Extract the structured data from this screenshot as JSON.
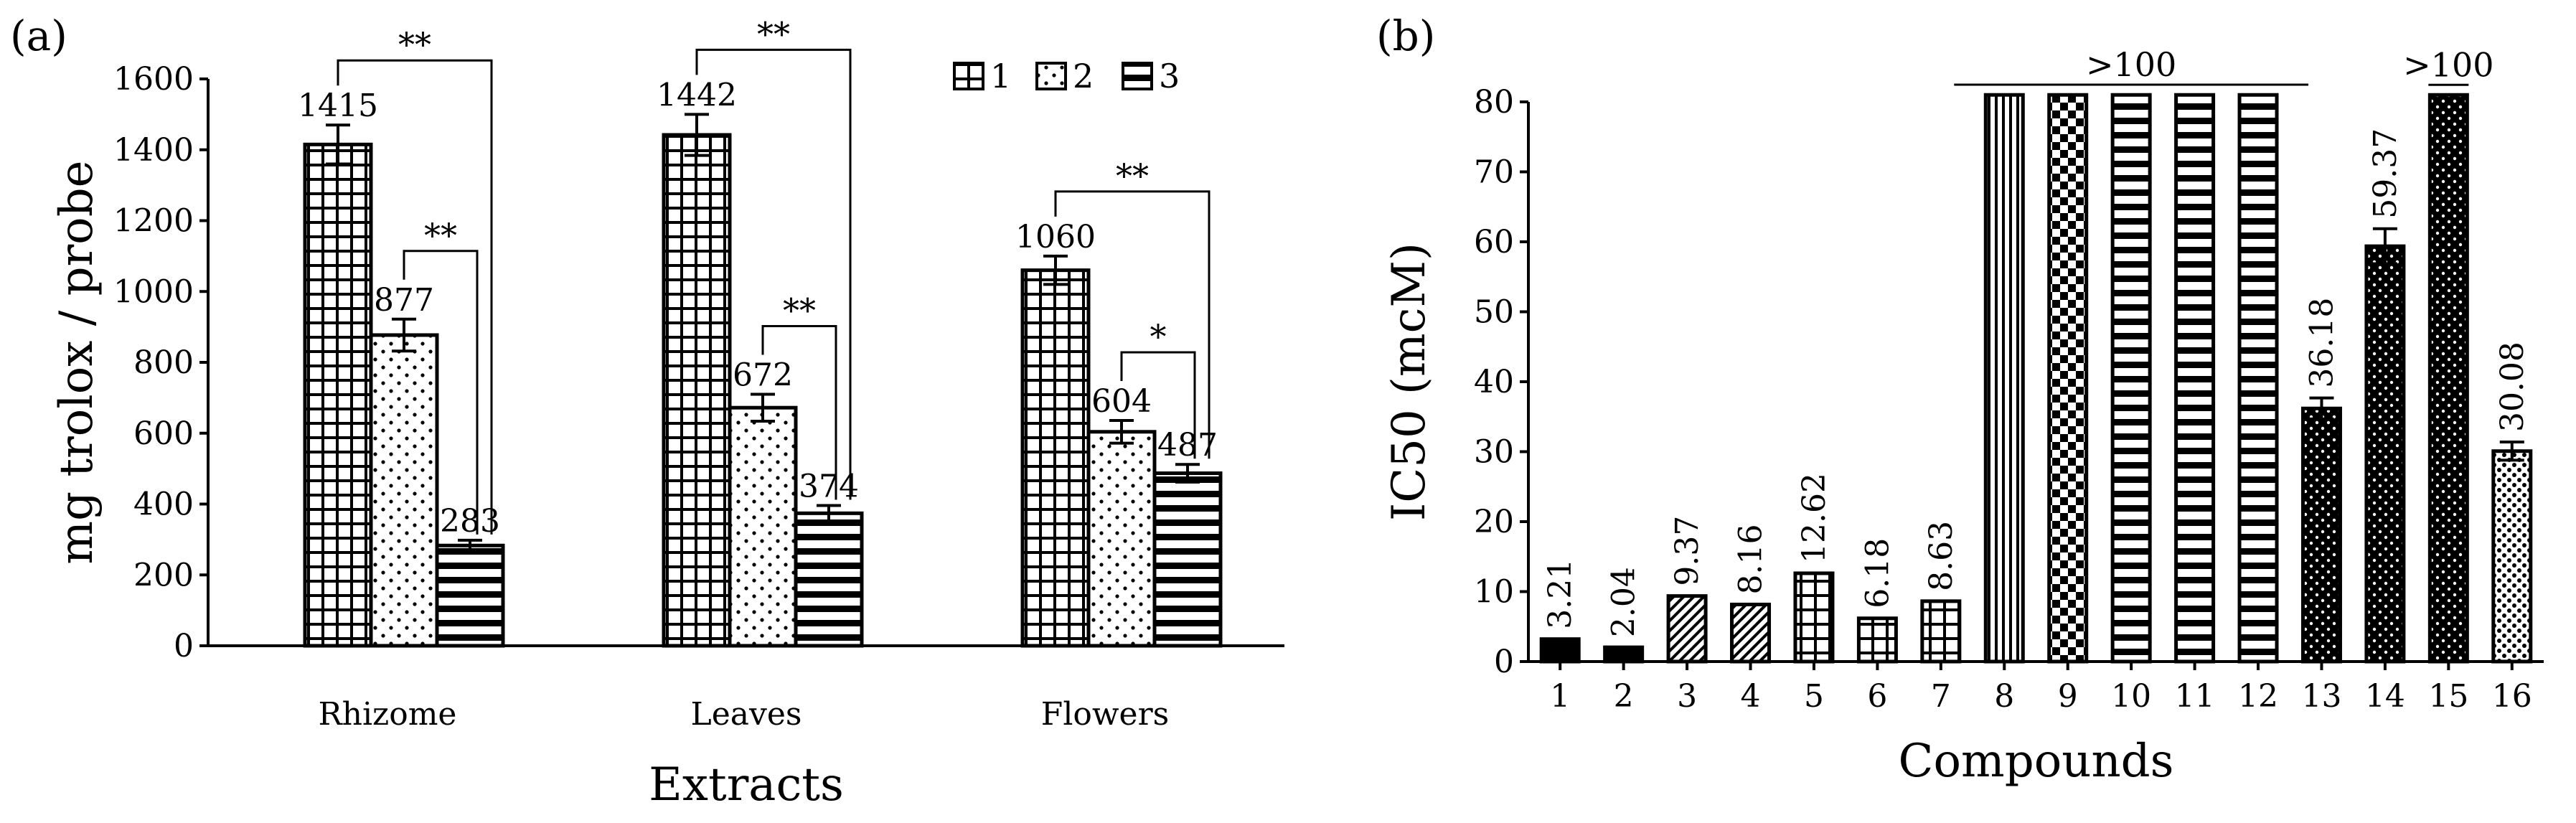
{
  "colors": {
    "ink": "#000000",
    "background": "#ffffff"
  },
  "chart_data": [
    {
      "type": "bar",
      "panel_label": "(a)",
      "title": "",
      "xlabel": "Extracts",
      "ylabel": "mg trolox / probe",
      "ylim": [
        0,
        1600
      ],
      "yticks": [
        "0",
        "200",
        "400",
        "600",
        "800",
        "1000",
        "1200",
        "1400",
        "1600"
      ],
      "categories": [
        "Rhizome",
        "Leaves",
        "Flowers"
      ],
      "series": [
        {
          "name": "1",
          "pattern": "grid",
          "values": [
            1415,
            1442,
            1060
          ],
          "errors": [
            55,
            58,
            40
          ],
          "labels": [
            "1415",
            "1442",
            "1060"
          ]
        },
        {
          "name": "2",
          "pattern": "dots",
          "values": [
            877,
            672,
            604
          ],
          "errors": [
            45,
            38,
            32
          ],
          "labels": [
            "877",
            "672",
            "604"
          ]
        },
        {
          "name": "3",
          "pattern": "hlines",
          "values": [
            283,
            374,
            487
          ],
          "errors": [
            15,
            22,
            25
          ],
          "labels": [
            "283",
            "374",
            "487"
          ]
        }
      ],
      "significance": [
        {
          "category": "Rhizome",
          "from": "1",
          "to": "3",
          "label": "**"
        },
        {
          "category": "Rhizome",
          "from": "2",
          "to": "3",
          "label": "**"
        },
        {
          "category": "Leaves",
          "from": "1",
          "to": "3",
          "label": "**"
        },
        {
          "category": "Leaves",
          "from": "2",
          "to": "3",
          "label": "**"
        },
        {
          "category": "Flowers",
          "from": "1",
          "to": "3",
          "label": "**"
        },
        {
          "category": "Flowers",
          "from": "2",
          "to": "3",
          "label": "*"
        }
      ],
      "legend": [
        "1",
        "2",
        "3"
      ],
      "legend_position": "top-right"
    },
    {
      "type": "bar",
      "panel_label": "(b)",
      "title": "",
      "xlabel": "Compounds",
      "ylabel": "IC50 (mcM)",
      "ylim": [
        0,
        80
      ],
      "yticks": [
        "0",
        "10",
        "20",
        "30",
        "40",
        "50",
        "60",
        "70",
        "80"
      ],
      "categories": [
        "1",
        "2",
        "3",
        "4",
        "5",
        "6",
        "7",
        "8",
        "9",
        "10",
        "11",
        "12",
        "13",
        "14",
        "15",
        "16"
      ],
      "values": [
        3.21,
        2.04,
        9.37,
        8.16,
        12.62,
        6.18,
        8.63,
        81,
        81,
        81,
        81,
        81,
        36.18,
        59.37,
        81,
        30.08
      ],
      "errors": [
        0,
        0,
        0,
        0,
        0,
        0,
        0,
        0,
        0,
        0,
        0,
        0,
        1.5,
        2.5,
        0,
        1.3
      ],
      "value_labels": [
        "3.21",
        "2.04",
        "9.37",
        "8.16",
        "12.62",
        "6.18",
        "8.63",
        "",
        "",
        "",
        "",
        "",
        "36.18",
        "59.37",
        "",
        "30.08"
      ],
      "patterns": [
        "solid",
        "solid",
        "diag",
        "diag",
        "grid",
        "grid",
        "grid",
        "vlines",
        "checker",
        "hlines",
        "hlines",
        "hlines",
        "blackdots",
        "blackdots",
        "blackdots",
        "sparsedots"
      ],
      "annotations": [
        {
          "from": "8",
          "to": "12",
          "label": ">100"
        },
        {
          "from": "15",
          "to": "15",
          "label": ">100"
        }
      ]
    }
  ]
}
